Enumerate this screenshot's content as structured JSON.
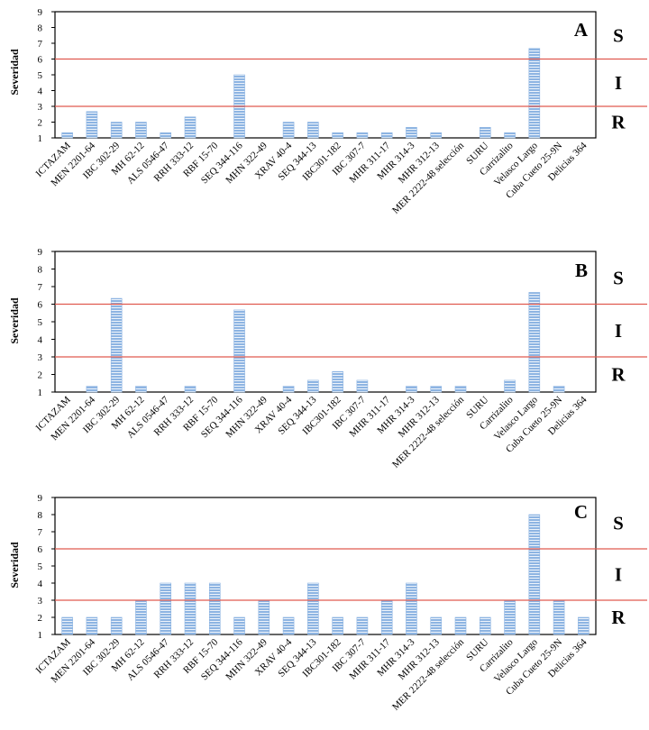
{
  "colors": {
    "bar_fill": "#8db4e2",
    "bar_stripe": "#ffffff",
    "threshold_line": "#e05a4f",
    "axis": "#000000",
    "text": "#000000"
  },
  "chart_data": [
    {
      "type": "bar",
      "panel_label": "A",
      "ylabel": "Severidad",
      "ylim": [
        1,
        9
      ],
      "yticks": [
        1,
        2,
        3,
        4,
        5,
        6,
        7,
        8,
        9
      ],
      "grid": false,
      "legend": "none",
      "thresholds": [
        3,
        6
      ],
      "zone_labels": [
        "S",
        "I",
        "R"
      ],
      "categories": [
        "ICTAZAM",
        "MEN 2201-64",
        "IBC 302-29",
        "MH 62-12",
        "ALS 0546-47",
        "RRH 333-12",
        "RBF 15-70",
        "SEQ 344-116",
        "MHN 322-49",
        "XRAV 40-4",
        "SEQ 344-13",
        "IBC301-182",
        "IBC 307-7",
        "MHR 311-17",
        "MHR 314-3",
        "MHR 312-13",
        "MER 2222-48 selección",
        "SURU",
        "Carrizalito",
        "Velasco Largo",
        "Cuba Cueto 25-9N",
        "Delicias 364"
      ],
      "values": [
        1.33,
        2.67,
        2.0,
        2.0,
        1.33,
        2.33,
        1.0,
        5.0,
        1.0,
        2.0,
        2.0,
        1.33,
        1.33,
        1.33,
        1.67,
        1.33,
        1.0,
        1.67,
        1.33,
        6.67,
        1.0,
        1.0
      ]
    },
    {
      "type": "bar",
      "panel_label": "B",
      "ylabel": "Severidad",
      "ylim": [
        1,
        9
      ],
      "yticks": [
        1,
        2,
        3,
        4,
        5,
        6,
        7,
        8,
        9
      ],
      "grid": false,
      "legend": "none",
      "thresholds": [
        3,
        6
      ],
      "zone_labels": [
        "S",
        "I",
        "R"
      ],
      "categories": [
        "ICTAZAM",
        "MEN 2201-64",
        "IBC 302-29",
        "MH 62-12",
        "ALS 0546-47",
        "RRH 333-12",
        "RBF 15-70",
        "SEQ 344-116",
        "MHN 322-49",
        "XRAV 40-4",
        "SEQ 344-13",
        "IBC301-182",
        "IBC 307-7",
        "MHR 311-17",
        "MHR 314-3",
        "MHR 312-13",
        "MER 2222-48 selección",
        "SURU",
        "Carrizalito",
        "Velasco Largo",
        "Cuba Cueto 25-9N",
        "Delicias 364"
      ],
      "values": [
        1.0,
        1.33,
        6.33,
        1.33,
        1.0,
        1.33,
        1.0,
        5.67,
        1.0,
        1.33,
        1.67,
        2.17,
        1.67,
        1.0,
        1.33,
        1.33,
        1.33,
        1.0,
        1.67,
        6.67,
        1.33,
        1.0
      ]
    },
    {
      "type": "bar",
      "panel_label": "C",
      "ylabel": "Severidad",
      "ylim": [
        1,
        9
      ],
      "yticks": [
        1,
        2,
        3,
        4,
        5,
        6,
        7,
        8,
        9
      ],
      "grid": false,
      "legend": "none",
      "thresholds": [
        3,
        6
      ],
      "zone_labels": [
        "S",
        "I",
        "R"
      ],
      "categories": [
        "ICTAZAM",
        "MEN 2201-64",
        "IBC 302-29",
        "MH 62-12",
        "ALS 0546-47",
        "RRH 333-12",
        "RBF 15-70",
        "SEQ 344-116",
        "MHN 322-49",
        "XRAV 40-4",
        "SEQ 344-13",
        "IBC301-182",
        "IBC 307-7",
        "MHR 311-17",
        "MHR 314-3",
        "MHR 312-13",
        "MER 2222-48 selección",
        "SURU",
        "Carrizalito",
        "Velasco Largo",
        "Cuba Cueto 25-9N",
        "Delicias 364"
      ],
      "values": [
        2,
        2,
        2,
        3,
        4,
        4,
        4,
        2,
        3,
        2,
        4,
        2,
        2,
        3,
        4,
        2,
        2,
        2,
        3,
        8,
        3,
        2
      ]
    }
  ]
}
